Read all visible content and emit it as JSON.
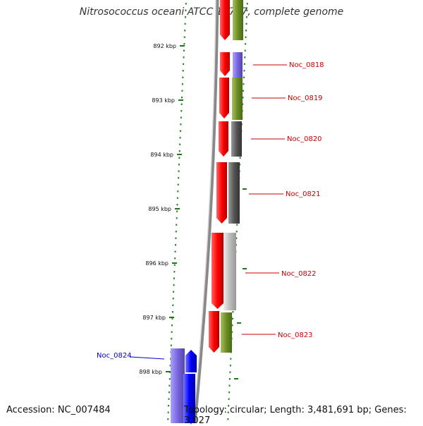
{
  "title": "Nitrosococcus oceani ATCC 19707, complete genome",
  "accession": "Accession: NC_007484",
  "summary": "Topology: circular; Length: 3,481,691 bp; Genes: 3,027",
  "colors": {
    "red": "#ff0000",
    "olive": "#6b8e23",
    "purple": "#7766dd",
    "blue": "#0000ff",
    "darkgray": "#555555",
    "lightgray": "#bbbbbb",
    "backbone": "#888888",
    "tick": "#1a7a1a",
    "label_red": "#cc0000",
    "label_blue": "#0000cc"
  },
  "ticks": [
    "892 kbp",
    "893 kbp",
    "894 kbp",
    "895 kbp",
    "896 kbp",
    "897 kbp",
    "898 kbp"
  ],
  "genes": [
    {
      "label": "Noc_0818",
      "color": "red"
    },
    {
      "label": "Noc_0819",
      "color": "red"
    },
    {
      "label": "Noc_0820",
      "color": "red"
    },
    {
      "label": "Noc_0821",
      "color": "red"
    },
    {
      "label": "Noc_0822",
      "color": "red"
    },
    {
      "label": "Noc_0823",
      "color": "red"
    },
    {
      "label": "Noc_0824",
      "color": "blue"
    }
  ]
}
